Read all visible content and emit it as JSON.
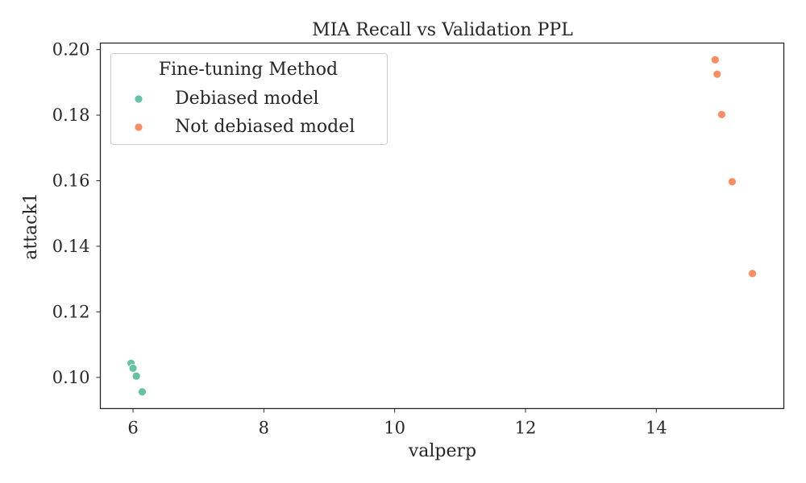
{
  "chart_data": {
    "type": "scatter",
    "title": "MIA Recall vs Validation PPL",
    "xlabel": "valperp",
    "ylabel": "attack1",
    "xlim": [
      5.5,
      15.95
    ],
    "ylim": [
      0.0905,
      0.202
    ],
    "xticks": [
      6,
      8,
      10,
      12,
      14
    ],
    "yticks": [
      0.1,
      0.12,
      0.14,
      0.16,
      0.18,
      0.2
    ],
    "xtick_labels": [
      "6",
      "8",
      "10",
      "12",
      "14"
    ],
    "ytick_labels": [
      "0.10",
      "0.12",
      "0.14",
      "0.16",
      "0.18",
      "0.20"
    ],
    "grid": false,
    "legend": {
      "title": "Fine-tuning Method",
      "placement": "upper-left"
    },
    "series": [
      {
        "name": "Debiased model",
        "color": "#66c2a5",
        "points": [
          {
            "x": 5.97,
            "y": 0.1043
          },
          {
            "x": 6.0,
            "y": 0.1028
          },
          {
            "x": 6.05,
            "y": 0.1004
          },
          {
            "x": 6.14,
            "y": 0.0956
          }
        ]
      },
      {
        "name": "Not debiased model",
        "color": "#fc8d62",
        "points": [
          {
            "x": 14.9,
            "y": 0.1969
          },
          {
            "x": 14.93,
            "y": 0.1925
          },
          {
            "x": 15.0,
            "y": 0.1802
          },
          {
            "x": 15.16,
            "y": 0.1597
          },
          {
            "x": 15.47,
            "y": 0.1317
          }
        ]
      }
    ]
  }
}
